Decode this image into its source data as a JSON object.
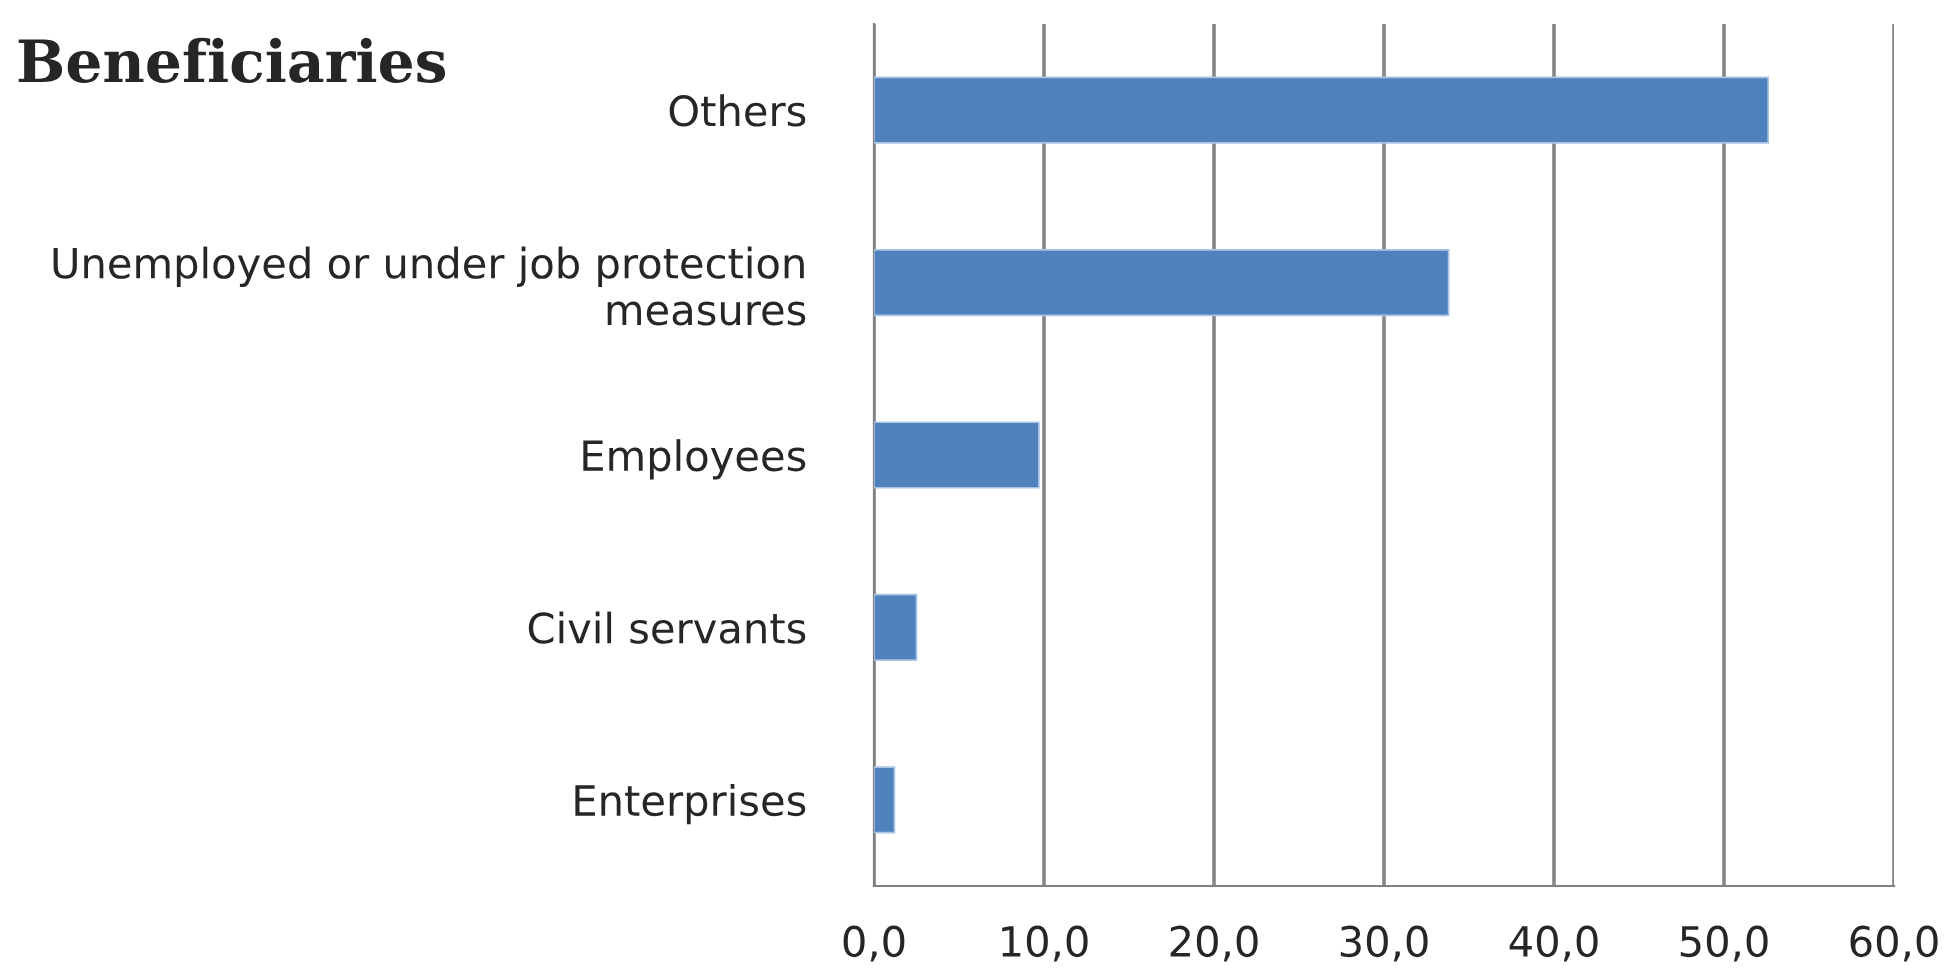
{
  "chart_data": {
    "type": "bar",
    "orientation": "horizontal",
    "title": "Beneficiaries",
    "categories": [
      "Others",
      "Unemployed or under job protection measures",
      "Employees",
      "Civil servants",
      "Enterprises"
    ],
    "values": [
      52.6,
      33.8,
      9.7,
      2.5,
      1.2
    ],
    "color": "#4f81bd",
    "xlim": [
      0,
      60
    ],
    "xticks": [
      {
        "value": 0,
        "label": "0,0"
      },
      {
        "value": 10,
        "label": "10,0"
      },
      {
        "value": 20,
        "label": "20,0"
      },
      {
        "value": 30,
        "label": "30,0"
      },
      {
        "value": 40,
        "label": "40,0"
      },
      {
        "value": 50,
        "label": "50,0"
      },
      {
        "value": 60,
        "label": "60,0"
      }
    ],
    "grid": "x",
    "legend": false
  }
}
